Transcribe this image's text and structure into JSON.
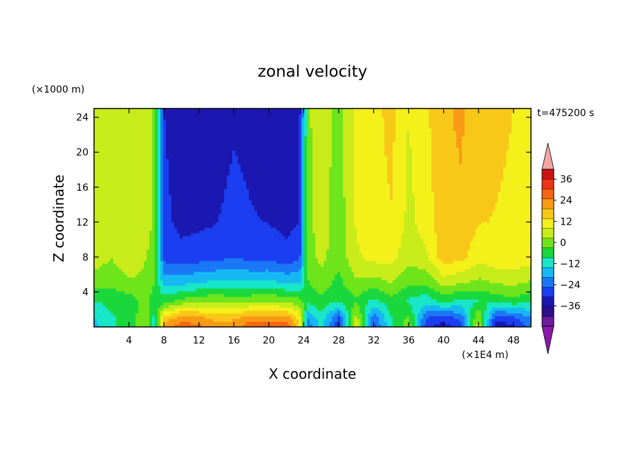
{
  "chart_data": {
    "type": "heatmap",
    "title": "zonal velocity",
    "xlabel": "X coordinate",
    "ylabel": "Z coordinate",
    "x_unit": "(×1E4 m)",
    "y_unit": "(×1000 m)",
    "time_label": "t=475200 s",
    "xlim": [
      0,
      50
    ],
    "ylim": [
      0,
      25
    ],
    "x_ticks": [
      4,
      8,
      12,
      16,
      20,
      24,
      28,
      32,
      36,
      40,
      44,
      48
    ],
    "y_ticks": [
      4,
      8,
      12,
      16,
      20,
      24
    ],
    "x_tick_labels": [
      "4",
      "8",
      "12",
      "16",
      "20",
      "24",
      "28",
      "32",
      "36",
      "40",
      "44",
      "48"
    ],
    "y_tick_labels": [
      "4",
      "8",
      "12",
      "16",
      "20",
      "24"
    ],
    "colorbar": {
      "levels": [
        -42,
        -36,
        -30,
        -24,
        -18,
        -12,
        -6,
        0,
        6,
        12,
        18,
        24,
        30,
        36
      ],
      "tick_values": [
        36,
        24,
        12,
        0,
        -12,
        -24,
        -36
      ],
      "tick_labels": [
        "36",
        "24",
        "12",
        "0",
        "−12",
        "−24",
        "−36"
      ],
      "over_color": "#f4a6a6",
      "under_color": "#8a1aa8",
      "colors": [
        "#6e1aa0",
        "#2c0f8a",
        "#1a18b0",
        "#1a3ef0",
        "#1a78f6",
        "#16b8f4",
        "#18e6c8",
        "#1ad83c",
        "#6ee41a",
        "#c8ec1a",
        "#f4f01a",
        "#f8c818",
        "#f89a14",
        "#f46610",
        "#ee3414",
        "#cc1414"
      ]
    },
    "series": [
      {
        "x": [
          0,
          2,
          4,
          6,
          7,
          8,
          10,
          12,
          14,
          16,
          18,
          20,
          22,
          23.5,
          24.5,
          26,
          28,
          30,
          32,
          34,
          36,
          38,
          40,
          42,
          44,
          46,
          48,
          50
        ],
        "upper": [
          12,
          11,
          6,
          11,
          4,
          -30,
          -34,
          -34,
          -33,
          -31,
          -32,
          -33,
          -34,
          -33,
          5,
          10,
          3,
          14,
          16,
          20,
          12,
          17,
          23,
          25,
          21,
          19,
          18,
          17
        ],
        "mid": [
          10,
          6,
          12,
          6,
          3,
          -26,
          -28,
          -27,
          -26,
          -24,
          -26,
          -26,
          -28,
          -26,
          3,
          8,
          2,
          11,
          14,
          14,
          8,
          11,
          21,
          20,
          14,
          16,
          16,
          15
        ],
        "low": [
          -6,
          -4,
          -3,
          2,
          -4,
          -2,
          2,
          4,
          6,
          3,
          5,
          6,
          4,
          2,
          -4,
          -2,
          -6,
          -1,
          -8,
          -2,
          -7,
          -10,
          -4,
          -8,
          -6,
          -4,
          -2,
          -5
        ],
        "surface": [
          -14,
          -8,
          -2,
          4,
          -10,
          26,
          34,
          32,
          26,
          28,
          34,
          34,
          34,
          20,
          -22,
          -10,
          -30,
          12,
          -26,
          -8,
          4,
          -28,
          -34,
          -26,
          10,
          -34,
          -32,
          -22
        ]
      }
    ]
  }
}
